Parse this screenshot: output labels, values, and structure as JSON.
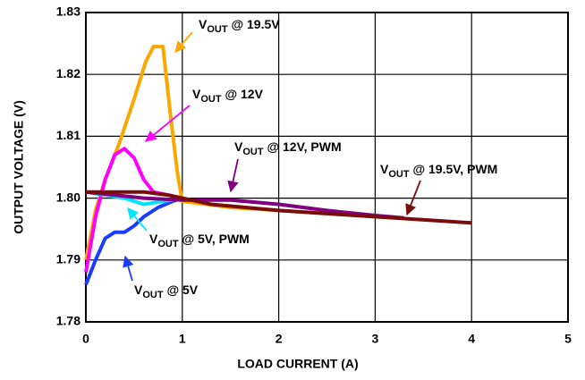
{
  "chart_data": {
    "type": "line",
    "xlabel": "LOAD CURRENT (A)",
    "ylabel": "OUTPUT VOLTAGE (V)",
    "xlim": [
      0,
      5
    ],
    "xticks": [
      0,
      1,
      2,
      3,
      4,
      5
    ],
    "ylim": [
      1.78,
      1.83
    ],
    "yticks": [
      1.78,
      1.79,
      {
        "value": 1.8,
        "label": "1.80"
      },
      1.81,
      1.82,
      1.83
    ],
    "grid": true,
    "series": [
      {
        "name": "VOUT @ 19.5V",
        "color": "#f9a800",
        "x": [
          0,
          0.1,
          0.2,
          0.35,
          0.5,
          0.62,
          0.7,
          0.8,
          0.88,
          0.95,
          1.0,
          1.5,
          2.0,
          2.5,
          3.0
        ],
        "values": [
          1.79,
          1.798,
          1.803,
          1.809,
          1.816,
          1.822,
          1.8245,
          1.8245,
          1.813,
          1.804,
          1.7995,
          1.7985,
          1.798,
          1.7975,
          1.797
        ]
      },
      {
        "name": "VOUT @ 12V",
        "color": "#ff00ff",
        "x": [
          0,
          0.1,
          0.2,
          0.3,
          0.4,
          0.5,
          0.6,
          0.7,
          0.85,
          1.0
        ],
        "values": [
          1.788,
          1.797,
          1.803,
          1.807,
          1.808,
          1.8065,
          1.803,
          1.801,
          1.8005,
          1.8
        ]
      },
      {
        "name": "VOUT @ 5V",
        "color": "#1a3cff",
        "x": [
          0,
          0.1,
          0.2,
          0.3,
          0.4,
          0.5,
          0.6,
          0.75,
          0.9,
          1.0
        ],
        "values": [
          1.786,
          1.79,
          1.7935,
          1.7945,
          1.7945,
          1.7955,
          1.797,
          1.7985,
          1.7995,
          1.8
        ]
      },
      {
        "name": "VOUT @ 5V, PWM",
        "color": "#00e5ff",
        "x": [
          0,
          0.2,
          0.4,
          0.6,
          0.8,
          1.0
        ],
        "values": [
          1.801,
          1.8005,
          1.8,
          1.799,
          1.7995,
          1.8
        ]
      },
      {
        "name": "VOUT @ 12V, PWM",
        "color": "#800080",
        "x": [
          0,
          0.3,
          0.6,
          1.0,
          1.5,
          2.0,
          2.5,
          3.0,
          3.3
        ],
        "values": [
          1.801,
          1.8005,
          1.8,
          1.7997,
          1.7997,
          1.799,
          1.798,
          1.7972,
          1.7968
        ]
      },
      {
        "name": "VOUT @ 19.5V, PWM",
        "color": "#7b0c0c",
        "x": [
          0,
          0.3,
          0.6,
          0.85,
          1.0,
          1.3,
          2.0,
          3.0,
          4.0
        ],
        "values": [
          1.801,
          1.801,
          1.801,
          1.8005,
          1.8,
          1.799,
          1.798,
          1.797,
          1.796
        ]
      }
    ]
  }
}
